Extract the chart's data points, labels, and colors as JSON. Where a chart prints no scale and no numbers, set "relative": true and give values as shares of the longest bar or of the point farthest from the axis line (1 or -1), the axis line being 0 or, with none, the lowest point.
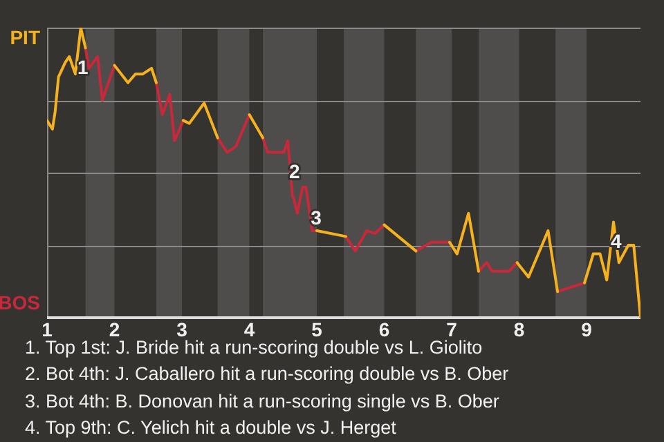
{
  "chart_data": {
    "type": "line",
    "relative": true,
    "xlim": [
      1,
      9.8
    ],
    "xticks": [
      1,
      2,
      3,
      4,
      5,
      6,
      7,
      8,
      9
    ],
    "grid": "y",
    "legend": "left",
    "marker": "none",
    "line_style": "solid",
    "series": [
      {
        "name": "PIT",
        "color": "#f5b21e",
        "x": [
          1,
          1.08,
          1.12,
          1.17,
          1.27,
          1.33,
          1.42,
          1.5,
          1.57,
          1.8,
          2,
          2.2,
          2.31,
          2.42,
          2.55,
          2.62,
          3.0,
          3.02,
          3.11,
          3.33,
          3.53,
          3.8,
          4,
          4.2,
          4.6,
          5,
          5.43,
          5.7,
          6,
          6.47,
          6.7,
          6.97,
          7.08,
          7.25,
          7.4,
          7.7,
          7.97,
          8.14,
          8.43,
          8.57,
          8.8,
          8.97,
          9.1,
          9.2,
          9.3,
          9.4,
          9.48,
          9.62,
          9.7,
          9.8
        ],
        "values": [
          0.68,
          0.65,
          0.71,
          0.83,
          0.88,
          0.9,
          0.84,
          1,
          0.93,
          null,
          0.87,
          0.81,
          0.84,
          0.84,
          0.86,
          0.81,
          null,
          0.68,
          0.67,
          0.74,
          0.62,
          null,
          0.7,
          0.62,
          null,
          0.3,
          0.28,
          null,
          0.32,
          0.23,
          null,
          0.26,
          0.22,
          0.36,
          0.16,
          null,
          0.19,
          0.14,
          0.3,
          0.09,
          null,
          0.12,
          0.22,
          0.22,
          0.13,
          0.33,
          0.19,
          0.25,
          0.25,
          0
        ]
      },
      {
        "name": "BOS",
        "color": "#c8283a",
        "x": [
          1.57,
          1.62,
          1.75,
          1.82,
          2,
          2.3,
          2.62,
          2.71,
          2.82,
          2.89,
          3.02,
          3.3,
          3.53,
          3.67,
          3.8,
          4,
          4.1,
          4.2,
          4.27,
          4.51,
          4.57,
          4.64,
          4.66,
          4.71,
          4.79,
          4.84,
          4.93,
          5,
          5.2,
          5.43,
          5.57,
          5.74,
          5.86,
          6,
          6.2,
          6.47,
          6.7,
          6.97,
          7.2,
          7.4,
          7.52,
          7.6,
          7.85,
          7.97,
          8.3,
          8.57,
          8.97
        ],
        "values": [
          0.93,
          0.86,
          0.9,
          0.75,
          0.87,
          null,
          0.81,
          0.7,
          0.77,
          0.61,
          0.68,
          null,
          0.62,
          0.57,
          0.59,
          0.7,
          null,
          0.62,
          0.57,
          0.57,
          0.61,
          0.42,
          0.41,
          0.36,
          0.45,
          0.45,
          0.3,
          0.3,
          null,
          0.28,
          0.23,
          0.3,
          0.29,
          0.32,
          null,
          0.23,
          0.26,
          0.26,
          null,
          0.16,
          0.19,
          0.16,
          0.16,
          0.19,
          null,
          0.09,
          0.12
        ]
      }
    ],
    "bands": [
      {
        "axis": "x",
        "from": 1.57,
        "to": 2,
        "color": "#4e4d4b"
      },
      {
        "axis": "x",
        "from": 2.62,
        "to": 3,
        "color": "#4e4d4b"
      },
      {
        "axis": "x",
        "from": 3.53,
        "to": 4,
        "color": "#4e4d4b"
      },
      {
        "axis": "x",
        "from": 4.2,
        "to": 5,
        "color": "#4e4d4b"
      },
      {
        "axis": "x",
        "from": 5.4,
        "to": 6,
        "color": "#4e4d4b"
      },
      {
        "axis": "x",
        "from": 6.47,
        "to": 7,
        "color": "#4e4d4b"
      },
      {
        "axis": "x",
        "from": 7.4,
        "to": 8,
        "color": "#4e4d4b"
      },
      {
        "axis": "x",
        "from": 8.54,
        "to": 9,
        "color": "#4e4d4b"
      }
    ],
    "annotations": [
      {
        "text": "1",
        "x": 1.53,
        "y": 0.86
      },
      {
        "text": "2",
        "x": 4.67,
        "y": 0.5
      },
      {
        "text": "3",
        "x": 4.99,
        "y": 0.34
      },
      {
        "text": "4",
        "x": 9.44,
        "y": 0.26
      },
      "1. Top 1st: J. Bride hit a run-scoring double vs L. Giolito",
      "2. Bot 4th: J. Caballero hit a run-scoring double vs B. Ober",
      "3. Bot 4th: B. Donovan hit a run-scoring single vs B. Ober",
      "4. Top 9th: C. Yelich hit a double vs J. Herget"
    ]
  }
}
